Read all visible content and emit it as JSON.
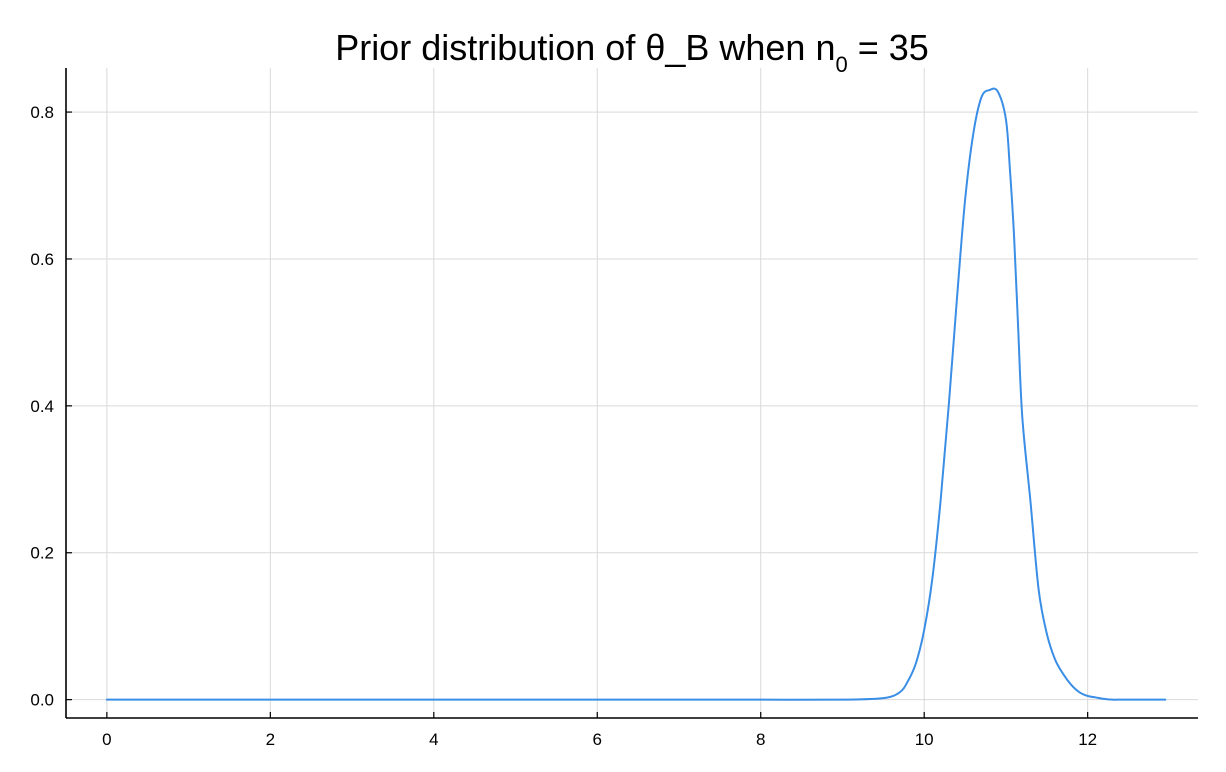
{
  "chart_data": {
    "type": "line",
    "title": "Prior distribution of θ_B when n",
    "title_subscript": "0",
    "title_suffix": " = 35",
    "xlabel": "",
    "ylabel": "",
    "xlim": [
      -0.5,
      13.35
    ],
    "ylim": [
      -0.025,
      0.86
    ],
    "xticks": [
      0,
      2,
      4,
      6,
      8,
      10,
      12
    ],
    "xtick_labels": [
      "0",
      "2",
      "4",
      "6",
      "8",
      "10",
      "12"
    ],
    "yticks": [
      0.0,
      0.2,
      0.4,
      0.6,
      0.8
    ],
    "ytick_labels": [
      "0.0",
      "0.2",
      "0.4",
      "0.6",
      "0.8"
    ],
    "grid": true,
    "legend": "none",
    "series": [
      {
        "color": "#3a8ee6",
        "x": [
          0,
          1,
          2,
          3,
          4,
          5,
          6,
          7,
          8,
          9,
          9.5,
          9.7,
          9.8,
          9.9,
          10.0,
          10.1,
          10.2,
          10.3,
          10.4,
          10.5,
          10.6,
          10.7,
          10.8,
          10.9,
          11.0,
          11.05,
          11.1,
          11.15,
          11.2,
          11.3,
          11.4,
          11.5,
          11.6,
          11.7,
          11.8,
          11.9,
          12.0,
          12.1,
          12.2,
          12.3,
          12.4,
          12.5,
          12.6,
          12.7,
          12.8,
          12.9,
          12.95
        ],
        "y": [
          0.0,
          0.0,
          0.0,
          0.0,
          0.0,
          0.0,
          0.0,
          0.0,
          0.0,
          0.0,
          0.002,
          0.01,
          0.025,
          0.05,
          0.095,
          0.165,
          0.27,
          0.4,
          0.545,
          0.68,
          0.77,
          0.82,
          0.83,
          0.828,
          0.79,
          0.72,
          0.63,
          0.505,
          0.385,
          0.27,
          0.15,
          0.09,
          0.055,
          0.035,
          0.02,
          0.01,
          0.005,
          0.003,
          0.001,
          0.0,
          0.0,
          0.0,
          0.0,
          0.0,
          0.0,
          0.0,
          0.0
        ]
      }
    ]
  }
}
